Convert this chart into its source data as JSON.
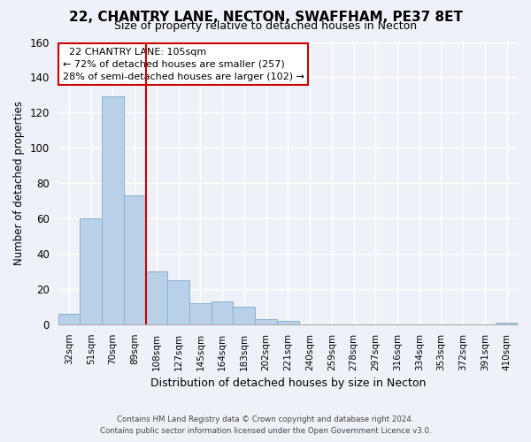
{
  "title": "22, CHANTRY LANE, NECTON, SWAFFHAM, PE37 8ET",
  "subtitle": "Size of property relative to detached houses in Necton",
  "xlabel": "Distribution of detached houses by size in Necton",
  "ylabel": "Number of detached properties",
  "bar_labels": [
    "32sqm",
    "51sqm",
    "70sqm",
    "89sqm",
    "108sqm",
    "127sqm",
    "145sqm",
    "164sqm",
    "183sqm",
    "202sqm",
    "221sqm",
    "240sqm",
    "259sqm",
    "278sqm",
    "297sqm",
    "316sqm",
    "334sqm",
    "353sqm",
    "372sqm",
    "391sqm",
    "410sqm"
  ],
  "bar_values": [
    6,
    60,
    129,
    73,
    30,
    25,
    12,
    13,
    10,
    3,
    2,
    0,
    0,
    0,
    0,
    0,
    0,
    0,
    0,
    0,
    1
  ],
  "bar_color": "#b8d0e8",
  "bar_edge_color": "#8ab0d0",
  "vline_index": 4,
  "vline_color": "#cc0000",
  "ylim": [
    0,
    160
  ],
  "yticks": [
    0,
    20,
    40,
    60,
    80,
    100,
    120,
    140,
    160
  ],
  "annotation_title": "22 CHANTRY LANE: 105sqm",
  "annotation_line1": "← 72% of detached houses are smaller (257)",
  "annotation_line2": "28% of semi-detached houses are larger (102) →",
  "annotation_box_facecolor": "#ffffff",
  "annotation_box_edgecolor": "#cc0000",
  "footer1": "Contains HM Land Registry data © Crown copyright and database right 2024.",
  "footer2": "Contains public sector information licensed under the Open Government Licence v3.0.",
  "background_color": "#eef2f8",
  "grid_color": "#d0d8e8"
}
